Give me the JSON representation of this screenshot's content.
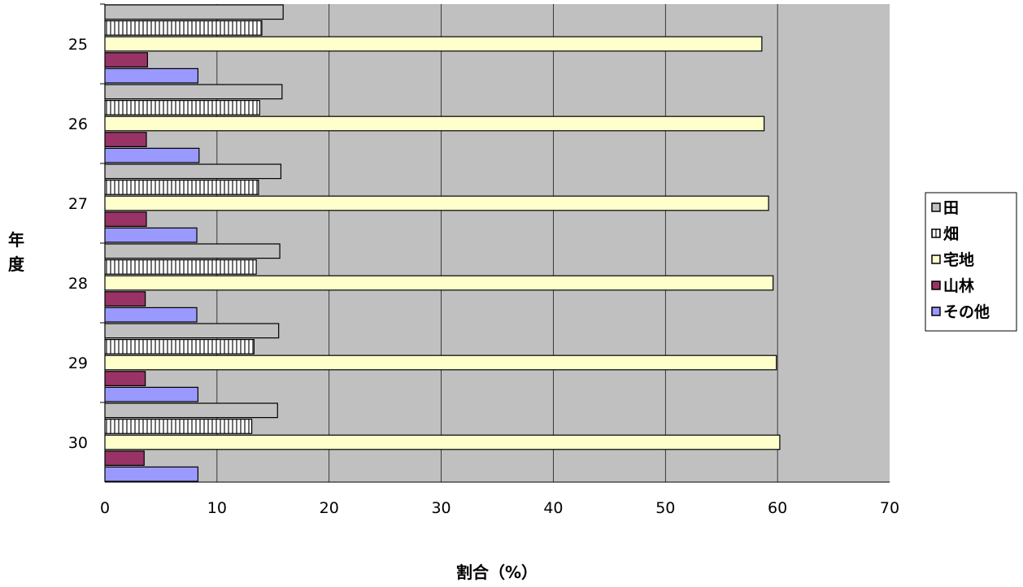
{
  "chart_data": {
    "type": "bar",
    "orientation": "horizontal",
    "categories": [
      "25",
      "26",
      "27",
      "28",
      "29",
      "30"
    ],
    "series": [
      {
        "name": "田",
        "values": [
          15.9,
          15.8,
          15.7,
          15.6,
          15.5,
          15.4
        ]
      },
      {
        "name": "畑",
        "values": [
          14.0,
          13.8,
          13.7,
          13.5,
          13.3,
          13.1
        ]
      },
      {
        "name": "宅地",
        "values": [
          58.6,
          58.8,
          59.2,
          59.6,
          59.9,
          60.2
        ]
      },
      {
        "name": "山林",
        "values": [
          3.8,
          3.7,
          3.7,
          3.6,
          3.6,
          3.5
        ]
      },
      {
        "name": "その他",
        "values": [
          8.3,
          8.4,
          8.2,
          8.2,
          8.3,
          8.3
        ]
      }
    ],
    "xlabel": "割合（%）",
    "ylabel": "年度",
    "xlim": [
      0,
      70
    ],
    "xticks": [
      "0",
      "10",
      "20",
      "30",
      "40",
      "50",
      "60",
      "70"
    ],
    "grid": true,
    "legend_position": "right",
    "colors": {
      "田": "#c0c0c0",
      "畑": "#ffffff",
      "宅地": "#ffffcc",
      "山林": "#993366",
      "その他": "#9999ff",
      "plot_background": "#c0c0c0"
    }
  }
}
